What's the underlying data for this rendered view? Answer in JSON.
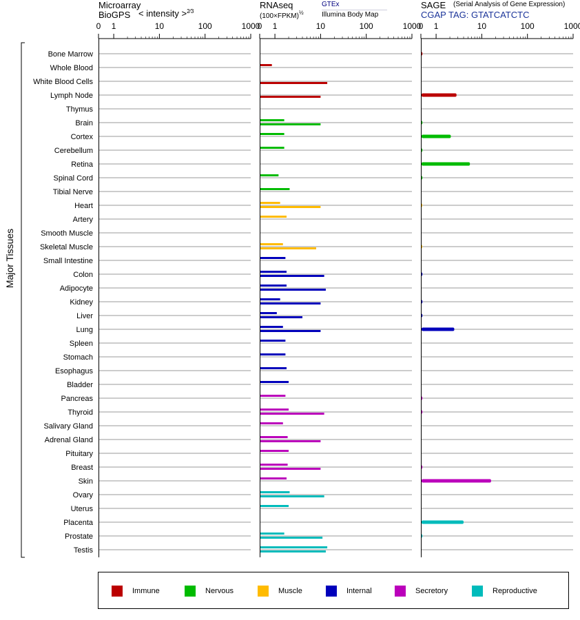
{
  "headers": {
    "microarray": {
      "title": "Microarray",
      "subtitle": "BioGPS",
      "unit": "< intensity >",
      "exp": "2⁄3"
    },
    "rnaseq": {
      "title": "RNAseq",
      "unit": "(100×FPKM)",
      "exp": "½",
      "source1": "GTEx",
      "source2": "Illumina Body Map"
    },
    "sage": {
      "title": "SAGE",
      "subtitle": "(Serial Analysis of Gene Expression)",
      "tag": "CGAP TAG: GTATCATCTC"
    }
  },
  "y_axis_label": "Major Tissues",
  "legend": [
    {
      "label": "Immune",
      "color": "#bb0000"
    },
    {
      "label": "Nervous",
      "color": "#00bb00"
    },
    {
      "label": "Muscle",
      "color": "#ffbb00"
    },
    {
      "label": "Internal",
      "color": "#0000bb"
    },
    {
      "label": "Secretory",
      "color": "#bb00bb"
    },
    {
      "label": "Reproductive",
      "color": "#00bbbb"
    }
  ],
  "chart_data": {
    "type": "bar",
    "x_ticks": [
      "0",
      "1",
      "10",
      "100",
      "1000"
    ],
    "categories": [
      "Bone Marrow",
      "Whole Blood",
      "White Blood Cells",
      "Lymph Node",
      "Thymus",
      "Brain",
      "Cortex",
      "Cerebellum",
      "Retina",
      "Spinal Cord",
      "Tibial Nerve",
      "Heart",
      "Artery",
      "Smooth Muscle",
      "Skeletal Muscle",
      "Small Intestine",
      "Colon",
      "Adipocyte",
      "Kidney",
      "Liver",
      "Lung",
      "Spleen",
      "Stomach",
      "Esophagus",
      "Bladder",
      "Pancreas",
      "Thyroid",
      "Salivary Gland",
      "Adrenal Gland",
      "Pituitary",
      "Breast",
      "Skin",
      "Ovary",
      "Uterus",
      "Placenta",
      "Prostate",
      "Testis"
    ],
    "groups": [
      "Immune",
      "Immune",
      "Immune",
      "Immune",
      "Immune",
      "Nervous",
      "Nervous",
      "Nervous",
      "Nervous",
      "Nervous",
      "Nervous",
      "Muscle",
      "Muscle",
      "Muscle",
      "Muscle",
      "Internal",
      "Internal",
      "Internal",
      "Internal",
      "Internal",
      "Internal",
      "Internal",
      "Internal",
      "Internal",
      "Internal",
      "Secretory",
      "Secretory",
      "Secretory",
      "Secretory",
      "Secretory",
      "Secretory",
      "Secretory",
      "Reproductive",
      "Reproductive",
      "Reproductive",
      "Reproductive",
      "Reproductive"
    ],
    "series": [
      {
        "name": "GTEx",
        "values": [
          null,
          0.8,
          null,
          null,
          null,
          1.6,
          1.6,
          1.6,
          null,
          1.2,
          2.1,
          1.3,
          1.8,
          null,
          1.5,
          1.7,
          1.8,
          1.8,
          1.3,
          1.1,
          1.5,
          1.7,
          1.7,
          1.8,
          2.0,
          1.7,
          2.0,
          1.5,
          1.9,
          2.0,
          1.9,
          1.8,
          2.1,
          2.0,
          null,
          1.6,
          14
        ]
      },
      {
        "name": "Illumina Body Map",
        "values": [
          null,
          null,
          14,
          10,
          null,
          10,
          null,
          null,
          null,
          null,
          null,
          10,
          null,
          null,
          8,
          null,
          12,
          13,
          10,
          4,
          10,
          null,
          null,
          null,
          null,
          null,
          12,
          null,
          10,
          null,
          10,
          null,
          12,
          null,
          null,
          11,
          13
        ]
      },
      {
        "name": "SAGE",
        "values": [
          0.1,
          null,
          null,
          2.8,
          null,
          0.1,
          2.1,
          0.1,
          5.5,
          0.1,
          null,
          0.05,
          null,
          null,
          0.05,
          null,
          0.1,
          null,
          0.1,
          0.1,
          2.5,
          null,
          null,
          null,
          null,
          0.1,
          0.1,
          null,
          null,
          null,
          0.1,
          16,
          null,
          null,
          4,
          0.1,
          null
        ]
      }
    ]
  }
}
